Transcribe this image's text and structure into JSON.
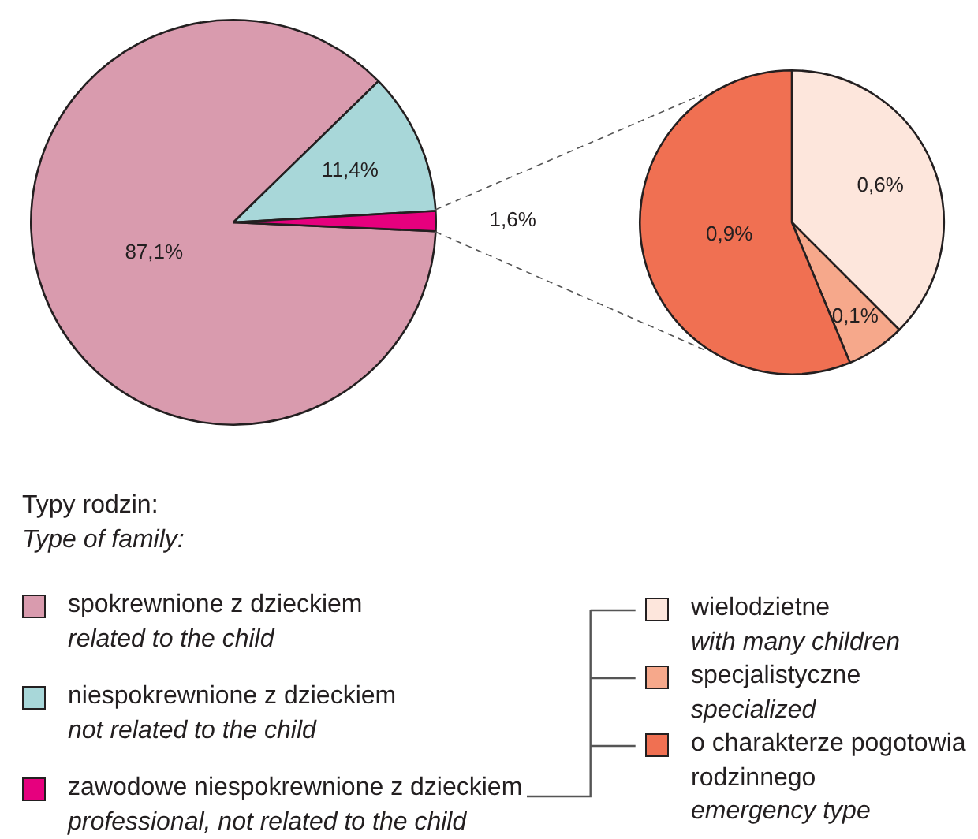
{
  "chart_data": [
    {
      "type": "pie",
      "categories": [
        "spokrewnione z dzieckiem\nrelated to the child",
        "niespokrewnione z dzieckiem\nnot related to the child",
        "zawodowe niespokrewnione z dzieckiem\nprofessional, not related to the child"
      ],
      "values": [
        87.1,
        11.4,
        1.6
      ],
      "colors": [
        "#d99bae",
        "#a8d7d9",
        "#e6007e"
      ],
      "value_labels": [
        "87,1%",
        "11,4%",
        "1,6%"
      ],
      "legend_title": "Typy rodzin:\nType of family:",
      "legend": "bottom"
    },
    {
      "type": "pie",
      "categories": [
        "wielodzietne\nwith many children",
        "specjalistyczne\nspecialized",
        "o charakterze pogotowia rodzinnego\nemergency type"
      ],
      "values": [
        0.6,
        0.1,
        0.9
      ],
      "colors": [
        "#fde6dc",
        "#f6a88b",
        "#f07052"
      ],
      "value_labels": [
        "0,6%",
        "0,1%",
        "0,9%"
      ],
      "legend": "bottom"
    }
  ]
}
